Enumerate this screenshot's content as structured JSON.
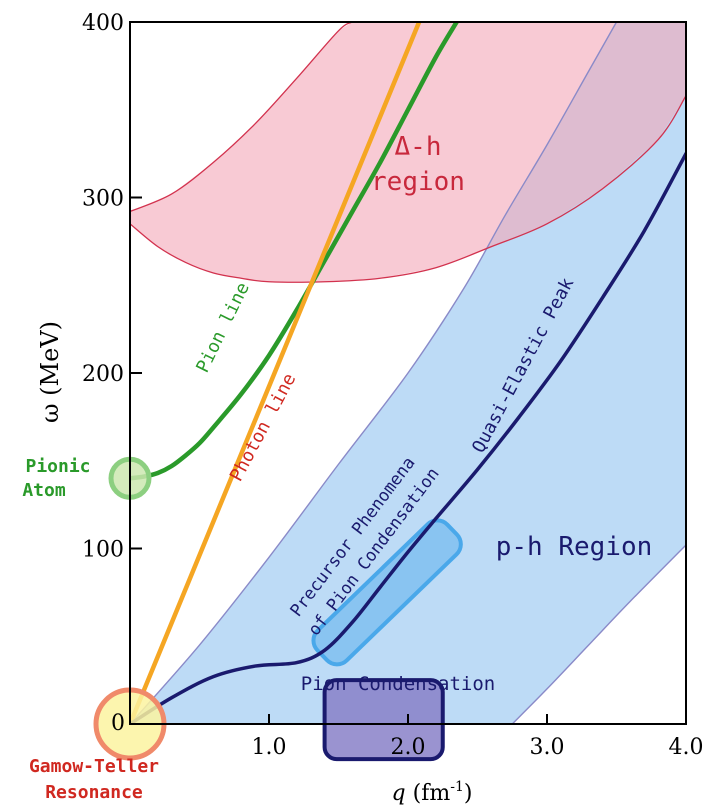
{
  "chart_data": {
    "type": "area",
    "xlabel": "q (fm",
    "xlabel_sup": "-1",
    "xlabel_close": ")",
    "ylabel": "ω (MeV)",
    "xlim": [
      0,
      4.0
    ],
    "ylim": [
      0,
      400
    ],
    "x_ticks": [
      {
        "value": 0,
        "label": "0"
      },
      {
        "value": 1.0,
        "label": "1.0"
      },
      {
        "value": 2.0,
        "label": "2.0"
      },
      {
        "value": 3.0,
        "label": "3.0"
      },
      {
        "value": 4.0,
        "label": "4.0"
      }
    ],
    "y_ticks": [
      {
        "value": 100,
        "label": "100"
      },
      {
        "value": 200,
        "label": "200"
      },
      {
        "value": 300,
        "label": "300"
      },
      {
        "value": 400,
        "label": "400"
      }
    ],
    "series": [
      {
        "name": "Pion line",
        "color": "#2a9a2a",
        "points": [
          [
            0.0,
            140
          ],
          [
            0.1,
            141
          ],
          [
            0.2,
            143
          ],
          [
            0.3,
            147
          ],
          [
            0.4,
            153
          ],
          [
            0.5,
            160
          ],
          [
            0.6,
            169
          ],
          [
            0.8,
            188
          ],
          [
            1.0,
            210
          ],
          [
            1.2,
            236
          ],
          [
            1.4,
            264
          ],
          [
            1.6,
            292
          ],
          [
            1.8,
            320
          ],
          [
            2.0,
            350
          ],
          [
            2.2,
            380
          ],
          [
            2.35,
            400
          ]
        ]
      },
      {
        "name": "Photon line",
        "color": "#f5a623",
        "points": [
          [
            0.0,
            0
          ],
          [
            2.08,
            400
          ]
        ]
      },
      {
        "name": "Quasi-Elastic Peak",
        "color": "#1a1a6e",
        "points": [
          [
            0.0,
            0
          ],
          [
            0.3,
            15
          ],
          [
            0.6,
            27
          ],
          [
            0.9,
            33
          ],
          [
            1.2,
            35
          ],
          [
            1.4,
            42
          ],
          [
            1.6,
            58
          ],
          [
            1.8,
            78
          ],
          [
            2.0,
            98
          ],
          [
            2.2,
            117
          ],
          [
            2.5,
            145
          ],
          [
            2.8,
            175
          ],
          [
            3.1,
            207
          ],
          [
            3.4,
            243
          ],
          [
            3.7,
            281
          ],
          [
            4.0,
            325
          ]
        ]
      }
    ],
    "regions": [
      {
        "name": "Δ-h region",
        "color": "#f4a6b8",
        "edge_color": "#d2324e",
        "lower": [
          [
            0.0,
            285
          ],
          [
            0.2,
            272
          ],
          [
            0.4,
            263
          ],
          [
            0.6,
            257
          ],
          [
            0.8,
            254
          ],
          [
            1.0,
            252
          ],
          [
            1.4,
            252
          ],
          [
            1.8,
            254
          ],
          [
            2.2,
            260
          ],
          [
            2.6,
            272
          ],
          [
            3.0,
            285
          ],
          [
            3.4,
            305
          ],
          [
            3.8,
            333
          ],
          [
            4.0,
            358
          ]
        ],
        "upper": [
          [
            0.0,
            292
          ],
          [
            0.3,
            302
          ],
          [
            0.6,
            320
          ],
          [
            0.9,
            342
          ],
          [
            1.2,
            368
          ],
          [
            1.5,
            395
          ],
          [
            1.6,
            400
          ],
          [
            4.0,
            400
          ]
        ]
      },
      {
        "name": "p-h Region",
        "color": "#b9d9f5",
        "edge_color": "#8a8ac8",
        "lower": [
          [
            0.0,
            0
          ],
          [
            2.75,
            0
          ],
          [
            3.0,
            20
          ],
          [
            3.3,
            45
          ],
          [
            3.6,
            70
          ],
          [
            4.0,
            102
          ]
        ],
        "upper": [
          [
            0.0,
            0
          ],
          [
            0.5,
            45
          ],
          [
            1.0,
            95
          ],
          [
            1.5,
            148
          ],
          [
            2.0,
            200
          ],
          [
            2.4,
            248
          ],
          [
            2.7,
            290
          ],
          [
            3.0,
            330
          ],
          [
            3.3,
            372
          ],
          [
            3.5,
            400
          ],
          [
            4.0,
            400
          ]
        ]
      }
    ],
    "boxes": [
      {
        "name": "Precursor Phenomena of Pion Condensation",
        "color": "#4aa8ea",
        "center": [
          1.85,
          75
        ],
        "length_q": 1.3,
        "height_q": 0.3
      },
      {
        "name": "Pion Condensation",
        "color": "#1a1a6e",
        "x": [
          1.4,
          2.25
        ],
        "y": [
          -20,
          25
        ]
      }
    ],
    "markers": [
      {
        "name": "Pionic Atom",
        "color": "#8ccf80",
        "fill": "#cce8b0",
        "x": 0.0,
        "y": 140
      },
      {
        "name": "Gamow-Teller Resonance",
        "color": "#f08a6a",
        "fill": "#fcf3a0",
        "x": 0.0,
        "y": 0
      }
    ],
    "annotations": {
      "delta_h_line1": "Δ-h",
      "delta_h_line2": "region",
      "pion_line": "Pion line",
      "photon_line": "Photon line",
      "quasi_elastic_peak": "Quasi-Elastic Peak",
      "precursor_line1": "Precursor Phenomena",
      "precursor_line2": "of Pion Condensation",
      "ph_region": "p-h Region",
      "pion_condensation": "Pion Condensation",
      "pionic_atom_line1": "Pionic",
      "pionic_atom_line2": "Atom",
      "gamow_teller_line1": "Gamow-Teller",
      "gamow_teller_line2": "Resonance"
    }
  }
}
